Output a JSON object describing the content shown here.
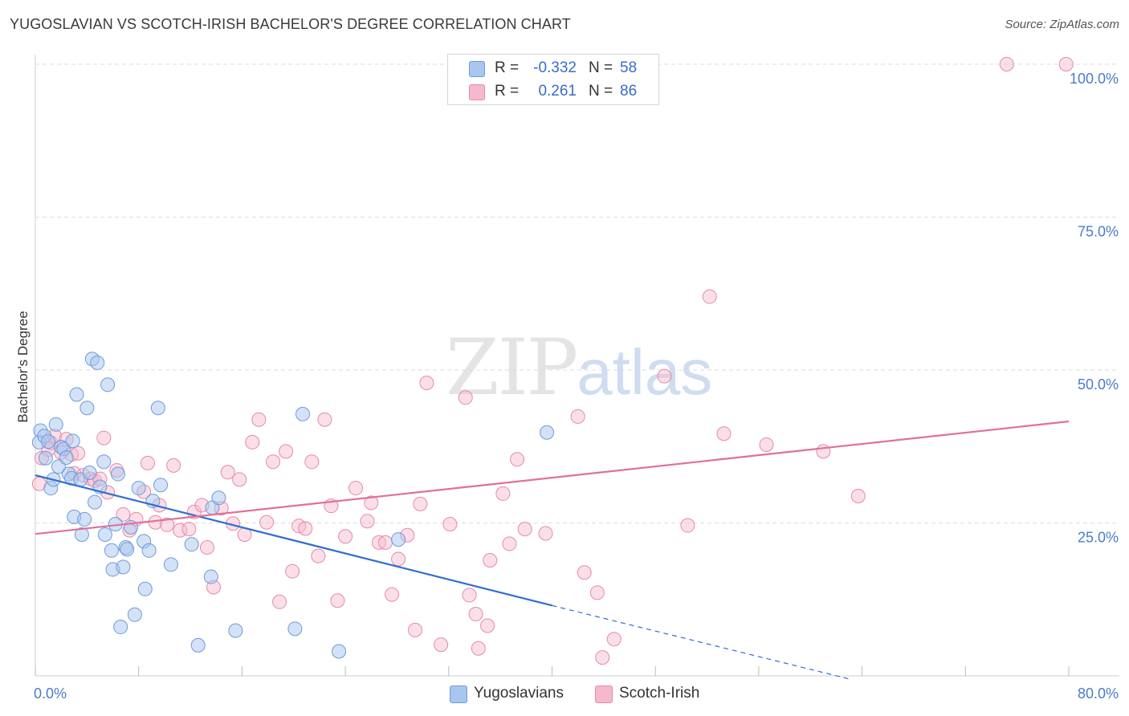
{
  "header": {
    "title": "YUGOSLAVIAN VS SCOTCH-IRISH BACHELOR'S DEGREE CORRELATION CHART",
    "source": "Source: ZipAtlas.com"
  },
  "watermark": {
    "zip": "ZIP",
    "atlas": "atlas"
  },
  "legend": {
    "rows": [
      {
        "r_label": "R =",
        "r_value": "-0.332",
        "n_label": "N =",
        "n_value": "58",
        "color": "#a8c6f0"
      },
      {
        "r_label": "R =",
        "r_value": "0.261",
        "n_label": "N =",
        "n_value": "86",
        "color": "#f6b8cc"
      }
    ]
  },
  "bottom_legend": {
    "items": [
      {
        "label": "Yugoslavians",
        "color": "#a8c6f0"
      },
      {
        "label": "Scotch-Irish",
        "color": "#f6b8cc"
      }
    ]
  },
  "colors": {
    "blue_fill": "#a8c6f0",
    "blue_stroke": "#6f9bd8",
    "blue_line": "#2f6fd0",
    "pink_fill": "#f6b8cc",
    "pink_stroke": "#e58aa8",
    "pink_line": "#e0709a",
    "grid": "#dcdcdc",
    "axis_label": "#4a7cc9"
  },
  "chart_data": {
    "type": "scatter",
    "ylabel": "Bachelor's Degree",
    "xlim": [
      0,
      80
    ],
    "ylim": [
      0,
      100
    ],
    "y_ticks": [
      {
        "value": 25,
        "label": "25.0%"
      },
      {
        "value": 50,
        "label": "50.0%"
      },
      {
        "value": 75,
        "label": "75.0%"
      },
      {
        "value": 100,
        "label": "100.0%"
      }
    ],
    "x_ticks": [
      {
        "value": 0,
        "label": "0.0%"
      },
      {
        "value": 80,
        "label": "80.0%"
      }
    ],
    "x_minor_ticks": [
      0,
      8,
      16,
      24,
      32,
      40,
      48,
      56,
      64,
      72,
      80
    ],
    "grid": true,
    "series": [
      {
        "name": "Yugoslavians",
        "color": "#a8c6f0",
        "trend": {
          "x0": 0,
          "y0": 32.8,
          "x1": 40,
          "y1": 11.5,
          "dash_to_x": 63,
          "dash_to_y": -0.5
        },
        "points": [
          [
            0.3,
            38.2
          ],
          [
            0.4,
            40.1
          ],
          [
            0.7,
            39.2
          ],
          [
            0.8,
            35.6
          ],
          [
            1.0,
            38.3
          ],
          [
            1.2,
            30.7
          ],
          [
            1.4,
            32.1
          ],
          [
            1.6,
            41.1
          ],
          [
            1.8,
            34.2
          ],
          [
            2.0,
            37.4
          ],
          [
            2.2,
            37.1
          ],
          [
            2.4,
            35.7
          ],
          [
            2.6,
            33.0
          ],
          [
            2.8,
            32.3
          ],
          [
            2.9,
            38.4
          ],
          [
            3.0,
            26.0
          ],
          [
            3.2,
            46.0
          ],
          [
            3.5,
            32.1
          ],
          [
            3.6,
            23.1
          ],
          [
            3.8,
            25.6
          ],
          [
            4.0,
            43.8
          ],
          [
            4.2,
            33.2
          ],
          [
            4.4,
            51.8
          ],
          [
            4.6,
            28.4
          ],
          [
            4.8,
            51.2
          ],
          [
            5.0,
            30.9
          ],
          [
            5.3,
            35.0
          ],
          [
            5.4,
            23.1
          ],
          [
            5.6,
            47.6
          ],
          [
            5.9,
            20.5
          ],
          [
            6.0,
            17.4
          ],
          [
            6.2,
            24.8
          ],
          [
            6.4,
            33.0
          ],
          [
            6.6,
            8.0
          ],
          [
            6.8,
            17.8
          ],
          [
            7.0,
            21.0
          ],
          [
            7.1,
            20.7
          ],
          [
            7.4,
            24.3
          ],
          [
            7.7,
            10.0
          ],
          [
            8.0,
            30.7
          ],
          [
            8.4,
            22.0
          ],
          [
            8.5,
            14.2
          ],
          [
            8.8,
            20.5
          ],
          [
            9.1,
            28.6
          ],
          [
            9.5,
            43.8
          ],
          [
            9.7,
            31.2
          ],
          [
            10.5,
            18.2
          ],
          [
            12.1,
            21.5
          ],
          [
            12.6,
            5.0
          ],
          [
            13.6,
            16.2
          ],
          [
            13.7,
            27.5
          ],
          [
            14.2,
            29.1
          ],
          [
            15.5,
            7.4
          ],
          [
            20.1,
            7.7
          ],
          [
            20.7,
            42.8
          ],
          [
            23.5,
            4.0
          ],
          [
            28.1,
            22.3
          ],
          [
            39.6,
            39.8
          ]
        ]
      },
      {
        "name": "Scotch-Irish",
        "color": "#f6b8cc",
        "trend": {
          "x0": 0,
          "y0": 23.2,
          "x1": 80,
          "y1": 41.6
        },
        "points": [
          [
            0.3,
            31.4
          ],
          [
            0.5,
            35.6
          ],
          [
            1.0,
            37.0
          ],
          [
            1.2,
            38.1
          ],
          [
            1.5,
            39.2
          ],
          [
            2.0,
            36.5
          ],
          [
            2.4,
            38.7
          ],
          [
            2.8,
            36.2
          ],
          [
            3.0,
            33.1
          ],
          [
            3.3,
            36.4
          ],
          [
            3.7,
            32.8
          ],
          [
            4.3,
            32.2
          ],
          [
            4.6,
            31.9
          ],
          [
            5.0,
            32.2
          ],
          [
            5.3,
            38.9
          ],
          [
            5.6,
            30.0
          ],
          [
            6.3,
            33.6
          ],
          [
            6.8,
            26.4
          ],
          [
            7.3,
            23.8
          ],
          [
            7.8,
            25.6
          ],
          [
            8.4,
            30.1
          ],
          [
            8.7,
            34.8
          ],
          [
            9.3,
            25.1
          ],
          [
            9.6,
            27.9
          ],
          [
            10.2,
            24.7
          ],
          [
            10.7,
            34.4
          ],
          [
            11.2,
            23.8
          ],
          [
            11.9,
            24.0
          ],
          [
            12.3,
            26.8
          ],
          [
            12.9,
            27.9
          ],
          [
            13.3,
            21.0
          ],
          [
            13.8,
            14.5
          ],
          [
            14.4,
            27.4
          ],
          [
            14.9,
            33.3
          ],
          [
            15.3,
            24.9
          ],
          [
            15.8,
            32.1
          ],
          [
            16.2,
            23.1
          ],
          [
            16.8,
            38.2
          ],
          [
            17.3,
            41.9
          ],
          [
            17.9,
            25.1
          ],
          [
            18.4,
            35.0
          ],
          [
            18.9,
            12.1
          ],
          [
            19.4,
            36.7
          ],
          [
            19.9,
            17.1
          ],
          [
            20.4,
            24.5
          ],
          [
            20.9,
            24.1
          ],
          [
            21.4,
            35.0
          ],
          [
            21.9,
            19.6
          ],
          [
            22.4,
            41.9
          ],
          [
            22.9,
            27.8
          ],
          [
            23.4,
            12.3
          ],
          [
            24.0,
            22.8
          ],
          [
            24.8,
            30.7
          ],
          [
            25.7,
            25.3
          ],
          [
            26.0,
            28.3
          ],
          [
            26.6,
            21.8
          ],
          [
            27.1,
            21.8
          ],
          [
            27.6,
            13.3
          ],
          [
            28.1,
            19.1
          ],
          [
            28.8,
            23.0
          ],
          [
            29.4,
            7.5
          ],
          [
            29.8,
            28.1
          ],
          [
            30.3,
            47.9
          ],
          [
            31.4,
            5.1
          ],
          [
            32.1,
            24.8
          ],
          [
            33.3,
            45.5
          ],
          [
            33.6,
            13.2
          ],
          [
            34.1,
            10.1
          ],
          [
            34.3,
            4.5
          ],
          [
            35.0,
            8.2
          ],
          [
            35.2,
            18.9
          ],
          [
            36.2,
            29.8
          ],
          [
            36.7,
            21.6
          ],
          [
            37.3,
            35.4
          ],
          [
            37.9,
            24.0
          ],
          [
            39.5,
            23.3
          ],
          [
            42.0,
            42.4
          ],
          [
            42.5,
            16.9
          ],
          [
            43.5,
            13.6
          ],
          [
            43.9,
            3.0
          ],
          [
            44.8,
            6.0
          ],
          [
            48.7,
            49.0
          ],
          [
            50.5,
            24.6
          ],
          [
            52.2,
            62.0
          ],
          [
            53.3,
            39.6
          ],
          [
            56.6,
            37.8
          ],
          [
            61.0,
            36.7
          ],
          [
            63.7,
            29.4
          ],
          [
            75.2,
            100.0
          ],
          [
            79.8,
            100.0
          ]
        ]
      }
    ]
  }
}
